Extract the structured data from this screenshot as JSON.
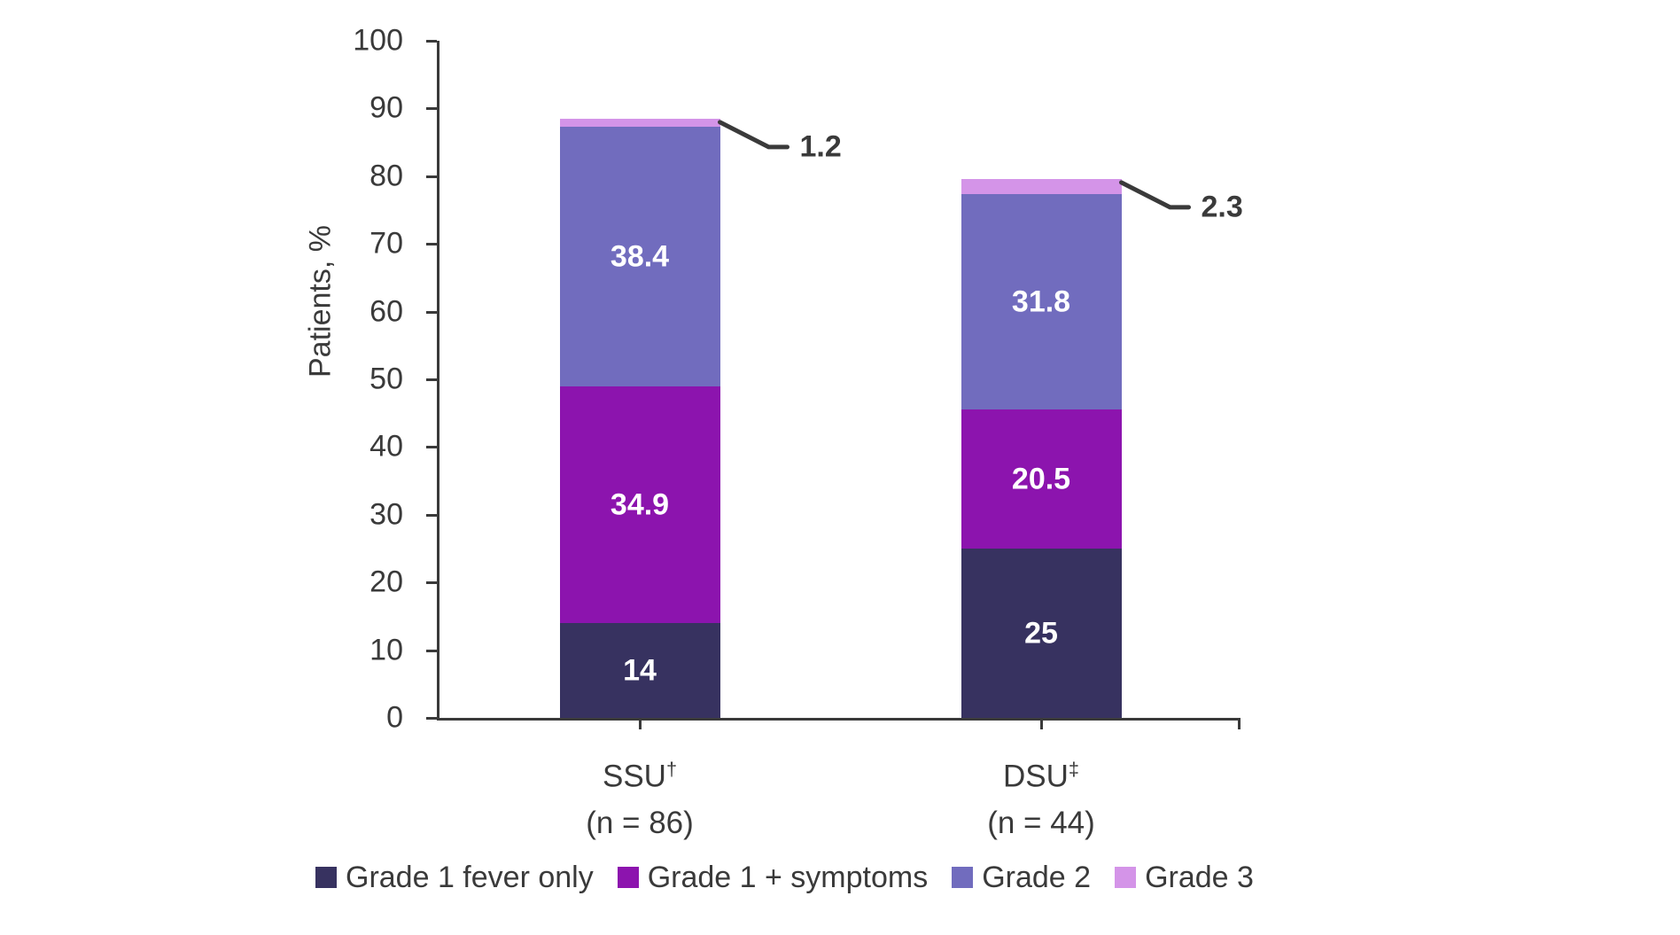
{
  "chart_data": {
    "type": "bar",
    "stacked": true,
    "title": "",
    "ylabel": "Patients, %",
    "xlabel": "",
    "ylim": [
      0,
      100
    ],
    "yticks": [
      0,
      10,
      20,
      30,
      40,
      50,
      60,
      70,
      80,
      90,
      100
    ],
    "grid": false,
    "legend_position": "bottom",
    "categories": [
      {
        "name": "SSU",
        "marker": "†",
        "n_label": "(n = 86)",
        "total": 88.5
      },
      {
        "name": "DSU",
        "marker": "‡",
        "n_label": "(n = 44)",
        "total": 79.6
      }
    ],
    "series": [
      {
        "name": "Grade 1 fever only",
        "color": "#373260",
        "values": [
          14,
          25
        ],
        "value_labels": [
          "14",
          "25"
        ],
        "label_style": "inside"
      },
      {
        "name": "Grade 1 + symptoms",
        "color": "#8c14ae",
        "values": [
          34.9,
          20.5
        ],
        "value_labels": [
          "34.9",
          "20.5"
        ],
        "label_style": "inside"
      },
      {
        "name": "Grade 2",
        "color": "#716cbe",
        "values": [
          38.4,
          31.8
        ],
        "value_labels": [
          "38.4",
          "31.8"
        ],
        "label_style": "inside"
      },
      {
        "name": "Grade 3",
        "color": "#d494e8",
        "values": [
          1.2,
          2.3
        ],
        "value_labels": [
          "1.2",
          "2.3"
        ],
        "label_style": "callout"
      }
    ],
    "colors": {
      "axis": "#3a3a3a",
      "text": "#3a3a3a",
      "bar_value_text": "#ffffff",
      "background": "#ffffff"
    }
  }
}
